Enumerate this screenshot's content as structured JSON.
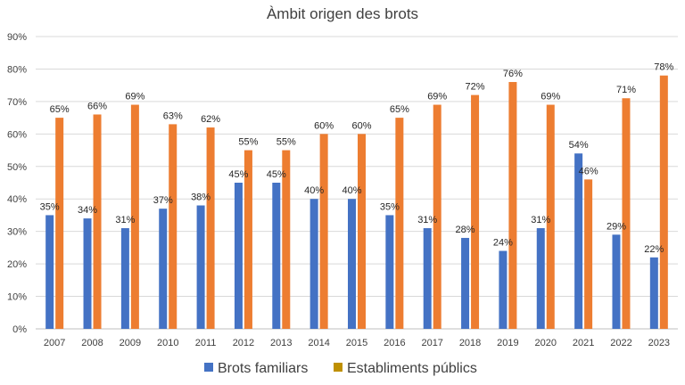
{
  "chart_data": {
    "type": "bar",
    "title": "Àmbit origen des brots",
    "xlabel": "",
    "ylabel": "",
    "ylim": [
      0,
      90
    ],
    "ytick_step": 10,
    "y_unit": "%",
    "grid": true,
    "legend_position": "bottom",
    "categories": [
      "2007",
      "2008",
      "2009",
      "2010",
      "2011",
      "2012",
      "2013",
      "2014",
      "2015",
      "2016",
      "2017",
      "2018",
      "2019",
      "2020",
      "2021",
      "2022",
      "2023"
    ],
    "series": [
      {
        "name": "Brots familiars",
        "color": "#4472C4",
        "values": [
          35,
          34,
          31,
          37,
          38,
          45,
          45,
          40,
          40,
          35,
          31,
          28,
          24,
          31,
          54,
          29,
          22
        ],
        "labels": [
          "35%",
          "34%",
          "31%",
          "37%",
          "38%",
          "45%",
          "45%",
          "40%",
          "40%",
          "35%",
          "31%",
          "28%",
          "24%",
          "31%",
          "54%",
          "29%",
          "22%"
        ]
      },
      {
        "name": "Establiments públics",
        "color": "#ED7D31",
        "legend_color": "#BF9000",
        "values": [
          65,
          66,
          69,
          63,
          62,
          55,
          55,
          60,
          60,
          65,
          69,
          72,
          76,
          69,
          46,
          71,
          78
        ],
        "labels": [
          "65%",
          "66%",
          "69%",
          "63%",
          "62%",
          "55%",
          "55%",
          "60%",
          "60%",
          "65%",
          "69%",
          "72%",
          "76%",
          "69%",
          "46%",
          "71%",
          "78%"
        ]
      }
    ]
  }
}
